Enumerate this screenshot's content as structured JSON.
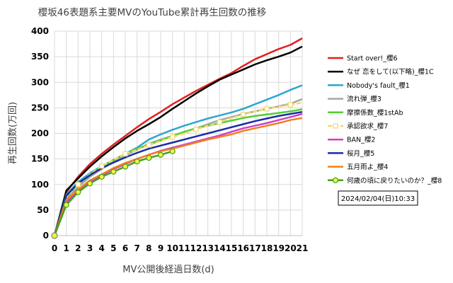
{
  "chart_data": {
    "type": "line",
    "title": "櫻坂46表題系主要MVのYouTube累計再生回数の推移",
    "xlabel": "MV公開後経過日数(d)",
    "ylabel": "再生回数(万回)",
    "xlim": [
      0,
      21
    ],
    "ylim": [
      0,
      400
    ],
    "x_ticks": [
      "0",
      "1",
      "2",
      "3",
      "4",
      "5",
      "6",
      "7",
      "8",
      "9",
      "10",
      "11",
      "12",
      "13",
      "14",
      "15",
      "16",
      "17",
      "18",
      "19",
      "20",
      "21"
    ],
    "y_ticks": [
      "0",
      "50",
      "100",
      "150",
      "200",
      "250",
      "300",
      "350",
      "400"
    ],
    "grid": true,
    "legend_position": "right",
    "annotation": "2024/02/04(日)10:33",
    "series": [
      {
        "name": "Start over!_櫻6",
        "color": "#e02020",
        "marker": "none",
        "x": [
          0,
          1,
          2,
          3,
          4,
          5,
          6,
          7,
          8,
          9,
          10,
          11,
          12,
          13,
          14,
          15,
          16,
          17,
          18,
          19,
          20,
          21
        ],
        "y": [
          0,
          85,
          115,
          140,
          160,
          178,
          195,
          212,
          228,
          242,
          257,
          270,
          283,
          295,
          307,
          318,
          332,
          345,
          355,
          365,
          373,
          386
        ]
      },
      {
        "name": "なぜ 恋をして(以下略)_櫻1C",
        "color": "#000000",
        "marker": "none",
        "x": [
          0,
          1,
          2,
          3,
          4,
          5,
          6,
          7,
          8,
          9,
          10,
          11,
          12,
          13,
          14,
          15,
          16,
          17,
          18,
          19,
          20,
          21
        ],
        "y": [
          0,
          88,
          112,
          135,
          155,
          173,
          190,
          205,
          218,
          232,
          248,
          263,
          278,
          292,
          305,
          315,
          325,
          335,
          343,
          350,
          358,
          370
        ]
      },
      {
        "name": "Nobody's fault_櫻1",
        "color": "#2ea6d0",
        "marker": "none",
        "x": [
          0,
          1,
          2,
          3,
          4,
          5,
          6,
          7,
          8,
          9,
          10,
          11,
          12,
          13,
          14,
          15,
          16,
          17,
          18,
          19,
          20,
          21
        ],
        "y": [
          0,
          80,
          105,
          122,
          136,
          148,
          160,
          172,
          188,
          198,
          207,
          215,
          222,
          229,
          235,
          241,
          248,
          257,
          266,
          275,
          285,
          294
        ]
      },
      {
        "name": "流れ弾_櫻3",
        "color": "#a6a6a6",
        "marker": "none",
        "x": [
          0,
          1,
          2,
          3,
          4,
          5,
          6,
          7,
          8,
          9,
          10,
          11,
          12,
          13,
          14,
          15,
          16,
          17,
          18,
          19,
          20,
          21
        ],
        "y": [
          0,
          70,
          95,
          115,
          130,
          145,
          157,
          168,
          180,
          188,
          195,
          203,
          210,
          218,
          226,
          232,
          238,
          243,
          248,
          253,
          258,
          267
        ]
      },
      {
        "name": "摩擦係数_櫻1stAb",
        "color": "#50d030",
        "marker": "none",
        "x": [
          0,
          1,
          2,
          3,
          4,
          5,
          6,
          7,
          8,
          9,
          10,
          11,
          12,
          13,
          14,
          15,
          16,
          17,
          18,
          19,
          20,
          21
        ],
        "y": [
          0,
          75,
          100,
          120,
          135,
          148,
          160,
          170,
          178,
          186,
          195,
          203,
          210,
          215,
          220,
          225,
          230,
          234,
          237,
          240,
          243,
          247
        ]
      },
      {
        "name": "承認欲求_櫻7",
        "color": "#f0d870",
        "marker": "square",
        "x": [
          0,
          1,
          2,
          3,
          4,
          5,
          6,
          7,
          8,
          9,
          10,
          11,
          12,
          13,
          14,
          15,
          16,
          17,
          18,
          19,
          20,
          21
        ],
        "y": [
          0,
          75,
          100,
          120,
          136,
          148,
          160,
          168,
          177,
          185,
          193,
          200,
          208,
          215,
          222,
          230,
          237,
          243,
          248,
          252,
          256,
          260
        ]
      },
      {
        "name": "BAN_櫻2",
        "color": "#d040c8",
        "marker": "none",
        "x": [
          0,
          1,
          2,
          3,
          4,
          5,
          6,
          7,
          8,
          9,
          10,
          11,
          12,
          13,
          14,
          15,
          16,
          17,
          18,
          19,
          20,
          21
        ],
        "y": [
          0,
          65,
          88,
          104,
          118,
          130,
          140,
          150,
          158,
          166,
          172,
          178,
          184,
          190,
          196,
          203,
          210,
          215,
          220,
          226,
          232,
          238
        ]
      },
      {
        "name": "桜月_櫻5",
        "color": "#1a2ea0",
        "marker": "none",
        "x": [
          0,
          1,
          2,
          3,
          4,
          5,
          6,
          7,
          8,
          9,
          10,
          11,
          12,
          13,
          14,
          15,
          16,
          17,
          18,
          19,
          20,
          21
        ],
        "y": [
          0,
          78,
          102,
          118,
          132,
          143,
          153,
          162,
          170,
          176,
          182,
          188,
          194,
          200,
          206,
          212,
          218,
          224,
          229,
          234,
          238,
          242
        ]
      },
      {
        "name": "五月雨よ_櫻4",
        "color": "#f08020",
        "marker": "none",
        "x": [
          0,
          1,
          2,
          3,
          4,
          5,
          6,
          7,
          8,
          9,
          10,
          11,
          12,
          13,
          14,
          15,
          16,
          17,
          18,
          19,
          20,
          21
        ],
        "y": [
          0,
          70,
          90,
          108,
          120,
          132,
          142,
          150,
          158,
          165,
          170,
          176,
          182,
          188,
          193,
          198,
          205,
          210,
          215,
          220,
          226,
          230
        ]
      },
      {
        "name": "何歳の頃に戻りたいのか？_櫻8",
        "color": "#40a020",
        "marker": "circle",
        "marker_fill": "#f0f040",
        "x": [
          0,
          1,
          2,
          3,
          4,
          5,
          6,
          7,
          8,
          9,
          10
        ],
        "y": [
          0,
          60,
          85,
          102,
          115,
          125,
          135,
          145,
          152,
          158,
          165
        ]
      }
    ]
  }
}
